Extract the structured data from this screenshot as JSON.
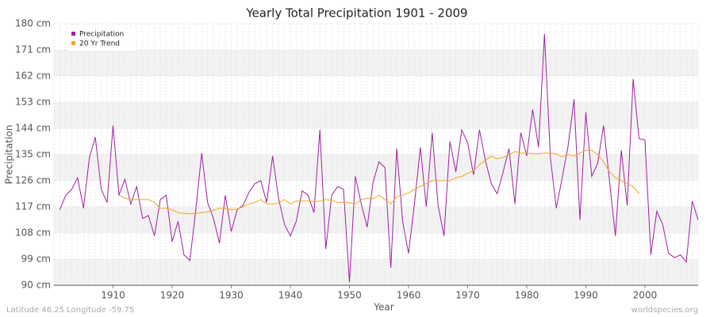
{
  "chart_data": {
    "type": "line",
    "title": "Yearly Total Precipitation 1901 - 2009",
    "x_label": "Year",
    "y_label": "Precipitation",
    "footer_left": "Latitude 46.25 Longitude -59.75",
    "footer_right": "worldspecies.org",
    "x": [
      1901,
      1902,
      1903,
      1904,
      1905,
      1906,
      1907,
      1908,
      1909,
      1910,
      1911,
      1912,
      1913,
      1914,
      1915,
      1916,
      1917,
      1918,
      1919,
      1920,
      1921,
      1922,
      1923,
      1924,
      1925,
      1926,
      1927,
      1928,
      1929,
      1930,
      1931,
      1932,
      1933,
      1934,
      1935,
      1936,
      1937,
      1938,
      1939,
      1940,
      1941,
      1942,
      1943,
      1944,
      1945,
      1946,
      1947,
      1948,
      1949,
      1950,
      1951,
      1952,
      1953,
      1954,
      1955,
      1956,
      1957,
      1958,
      1959,
      1960,
      1961,
      1962,
      1963,
      1964,
      1965,
      1966,
      1967,
      1968,
      1969,
      1970,
      1971,
      1972,
      1973,
      1974,
      1975,
      1976,
      1977,
      1978,
      1979,
      1980,
      1981,
      1982,
      1983,
      1984,
      1985,
      1986,
      1987,
      1988,
      1989,
      1990,
      1991,
      1992,
      1993,
      1994,
      1995,
      1996,
      1997,
      1998,
      1999,
      2000,
      2001,
      2002,
      2003,
      2004,
      2005,
      2006,
      2007,
      2008,
      2009
    ],
    "series": [
      {
        "name": "Precipitation",
        "color": "#a020a0",
        "values": [
          116,
          121,
          123,
          127,
          116.5,
          134,
          141,
          123,
          118.5,
          145,
          121,
          126.5,
          118,
          124,
          113,
          114,
          107,
          119.5,
          121,
          105,
          112,
          100.5,
          98.5,
          116,
          135.5,
          118.5,
          113,
          104.5,
          121,
          108.5,
          116,
          117.5,
          122,
          125,
          126,
          118.5,
          134.5,
          120,
          111,
          107,
          112,
          122.5,
          121,
          115,
          143.5,
          102.5,
          121,
          124,
          123,
          91,
          127.5,
          118,
          110,
          125.5,
          132.5,
          130.5,
          96,
          137,
          112,
          101,
          118,
          137.5,
          117,
          142.5,
          117.5,
          107,
          139.5,
          129,
          143.5,
          139,
          128,
          143.5,
          133,
          125,
          121.5,
          129,
          137,
          118,
          142.5,
          134.5,
          150.5,
          137.5,
          176.5,
          134,
          116.5,
          127,
          138,
          154,
          112.5,
          149.5,
          127.5,
          132,
          145,
          126,
          107,
          136.5,
          117.5,
          161,
          140.5,
          140,
          100.5,
          115.5,
          111,
          101,
          99.5,
          100.5,
          98,
          119,
          112.5
        ]
      },
      {
        "name": "20 Yr Trend",
        "color": "#f5a623",
        "values": [
          null,
          null,
          null,
          null,
          null,
          null,
          null,
          null,
          null,
          null,
          121,
          120,
          119.5,
          119.5,
          119.5,
          119.5,
          118.5,
          116.5,
          116.5,
          116,
          115,
          114.8,
          114.6,
          114.8,
          115,
          115.2,
          115.8,
          116.5,
          116.5,
          116,
          116.2,
          117,
          118,
          118.5,
          119.5,
          118,
          118,
          118.3,
          119.5,
          118,
          119,
          119,
          119,
          118.8,
          119,
          119.5,
          119.3,
          118.5,
          118.6,
          118.4,
          118,
          119.5,
          120,
          119.8,
          121,
          119.5,
          118,
          120.5,
          121,
          121.8,
          123,
          124,
          125,
          126,
          126,
          126,
          126,
          127,
          127.5,
          128.5,
          129.5,
          131.5,
          133,
          134.5,
          133.5,
          134,
          135,
          136,
          135.5,
          135.5,
          135.3,
          135.3,
          135.5,
          135.5,
          135.2,
          134.2,
          135,
          134.5,
          135.5,
          136.5,
          136.5,
          135,
          132.5,
          129,
          127,
          126,
          125,
          124,
          121.5,
          null,
          null,
          null,
          null,
          null,
          null,
          null,
          null,
          null,
          null
        ]
      }
    ],
    "xlim": [
      1900,
      2009
    ],
    "xticks": [
      1910,
      1920,
      1930,
      1940,
      1950,
      1960,
      1970,
      1980,
      1990,
      2000
    ],
    "ylim": [
      90,
      180
    ],
    "yticks": [
      {
        "value": 90,
        "label": "90 cm"
      },
      {
        "value": 99,
        "label": "99 cm"
      },
      {
        "value": 108,
        "label": "108 cm"
      },
      {
        "value": 117,
        "label": "117 cm"
      },
      {
        "value": 126,
        "label": "126 cm"
      },
      {
        "value": 135,
        "label": "135 cm"
      },
      {
        "value": 144,
        "label": "144 cm"
      },
      {
        "value": 153,
        "label": "153 cm"
      },
      {
        "value": 162,
        "label": "162 cm"
      },
      {
        "value": 171,
        "label": "171 cm"
      },
      {
        "value": 180,
        "label": "180 cm"
      }
    ],
    "grid": true,
    "legend": "top-left"
  }
}
